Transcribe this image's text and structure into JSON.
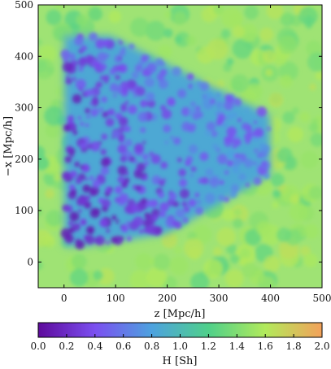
{
  "chart_data": {
    "type": "heatmap",
    "title": "",
    "xlabel": "z [Mpc/h]",
    "ylabel": "−x [Mpc/h]",
    "xlim": [
      -50,
      500
    ],
    "ylim": [
      -50,
      500
    ],
    "xticks": [
      0,
      100,
      200,
      300,
      400,
      500
    ],
    "yticks": [
      0,
      100,
      200,
      300,
      400,
      500
    ],
    "grid": false,
    "colorbar": {
      "label": "H [Sh]",
      "range": [
        0.0,
        2.0
      ],
      "ticks": [
        "0.0",
        "0.2",
        "0.4",
        "0.6",
        "0.8",
        "1.0",
        "1.2",
        "1.4",
        "1.6",
        "1.8",
        "2.0"
      ],
      "colormap": [
        "#5e0a9c",
        "#7b4ff0",
        "#4da2df",
        "#4fd08a",
        "#b2ea5b",
        "#f3a15a"
      ]
    },
    "field": {
      "background_value": 1.45,
      "survey_region_value_range": [
        0.1,
        0.8
      ],
      "survey_region_vertices": [
        [
          0,
          30
        ],
        [
          0,
          440
        ],
        [
          90,
          440
        ],
        [
          400,
          285
        ],
        [
          400,
          170
        ],
        [
          200,
          55
        ],
        [
          40,
          30
        ]
      ]
    }
  }
}
